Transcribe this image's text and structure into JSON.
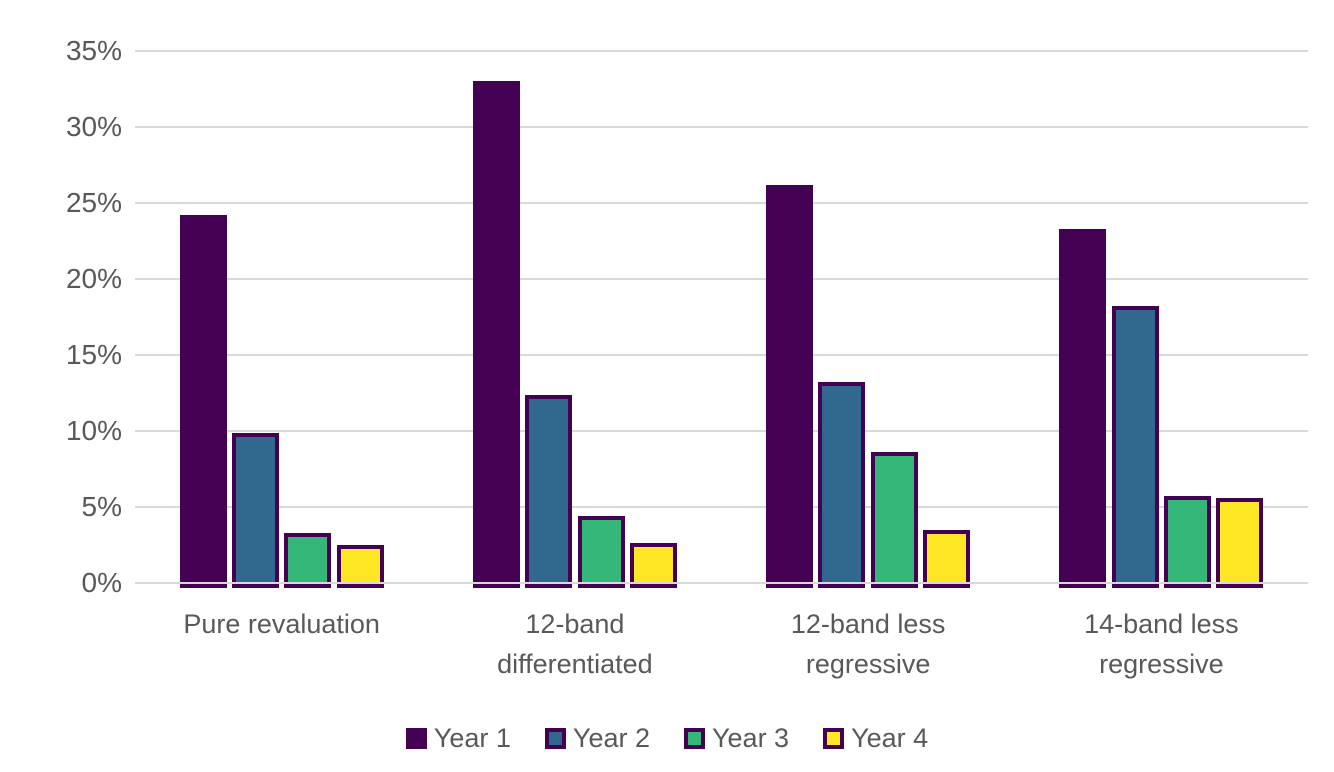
{
  "chart_data": {
    "type": "bar",
    "title": "",
    "categories": [
      "Pure revaluation",
      "12-band differentiated",
      "12-band less regressive",
      "14-band less regressive"
    ],
    "category_lines": [
      [
        "Pure revaluation"
      ],
      [
        "12-band",
        "differentiated"
      ],
      [
        "12-band less",
        "regressive"
      ],
      [
        "14-band less",
        "regressive"
      ]
    ],
    "series": [
      {
        "name": "Year 1",
        "color": "#440154",
        "values": [
          24.2,
          33.0,
          26.2,
          23.3
        ]
      },
      {
        "name": "Year 2",
        "color": "#31688E",
        "values": [
          9.9,
          12.4,
          13.2,
          18.2
        ]
      },
      {
        "name": "Year 3",
        "color": "#35B779",
        "values": [
          3.3,
          4.4,
          8.6,
          5.7
        ]
      },
      {
        "name": "Year 4",
        "color": "#FDE725",
        "values": [
          2.5,
          2.6,
          3.5,
          5.6
        ]
      }
    ],
    "bar_border_color": "#440154",
    "ylim": [
      0,
      35
    ],
    "y_tick_step": 5,
    "y_ticks": [
      "0%",
      "5%",
      "10%",
      "15%",
      "20%",
      "25%",
      "30%",
      "35%"
    ],
    "grid": true,
    "gridline_color": "#D9D9D9",
    "axis_text_color": "#595959",
    "legend_position": "bottom",
    "legend": [
      "Year 1",
      "Year 2",
      "Year 3",
      "Year 4"
    ]
  }
}
